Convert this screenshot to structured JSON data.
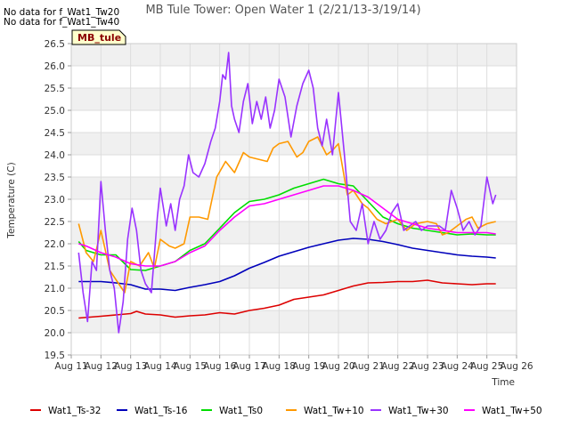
{
  "chart_data": {
    "type": "line",
    "title": "MB Tule Tower: Open Water 1 (2/21/13-3/19/14)",
    "xlabel": "Time",
    "ylabel": "Temperature (C)",
    "ylim": [
      19.5,
      26.5
    ],
    "yticks": [
      "19.5",
      "20.0",
      "20.5",
      "21.0",
      "21.5",
      "22.0",
      "22.5",
      "23.0",
      "23.5",
      "24.0",
      "24.5",
      "25.0",
      "25.5",
      "26.0",
      "26.5"
    ],
    "xlim": [
      11,
      26
    ],
    "xticks": [
      "Aug 11",
      "Aug 12",
      "Aug 13",
      "Aug 14",
      "Aug 15",
      "Aug 16",
      "Aug 17",
      "Aug 18",
      "Aug 19",
      "Aug 20",
      "Aug 21",
      "Aug 22",
      "Aug 23",
      "Aug 24",
      "Aug 25",
      "Aug 26"
    ],
    "notes": [
      "No data for f_Wat1_Tw20",
      "No data for f_Wat1_Tw40"
    ],
    "badge": "MB_tule",
    "series": [
      {
        "name": "Wat1_Ts-32",
        "color": "#dd0000",
        "x": [
          11.25,
          12,
          12.5,
          13,
          13.2,
          13.5,
          14,
          14.5,
          15,
          15.5,
          16,
          16.5,
          17,
          17.5,
          18,
          18.5,
          19,
          19.5,
          20,
          20.5,
          21,
          21.5,
          22,
          22.5,
          23,
          23.5,
          24,
          24.5,
          25,
          25.3
        ],
        "y": [
          20.33,
          20.37,
          20.4,
          20.43,
          20.48,
          20.42,
          20.4,
          20.35,
          20.38,
          20.4,
          20.45,
          20.42,
          20.5,
          20.55,
          20.62,
          20.75,
          20.8,
          20.85,
          20.95,
          21.05,
          21.12,
          21.13,
          21.15,
          21.15,
          21.18,
          21.12,
          21.1,
          21.08,
          21.1,
          21.1
        ]
      },
      {
        "name": "Wat1_Ts-16",
        "color": "#0000bb",
        "x": [
          11.25,
          12,
          12.5,
          13,
          13.5,
          14,
          14.5,
          15,
          15.5,
          16,
          16.5,
          17,
          17.5,
          18,
          18.5,
          19,
          19.5,
          20,
          20.5,
          21,
          21.5,
          22,
          22.5,
          23,
          23.5,
          24,
          24.5,
          25,
          25.3
        ],
        "y": [
          21.15,
          21.15,
          21.12,
          21.08,
          20.98,
          20.98,
          20.95,
          21.02,
          21.08,
          21.15,
          21.28,
          21.45,
          21.58,
          21.72,
          21.82,
          21.92,
          22.0,
          22.08,
          22.12,
          22.1,
          22.05,
          21.98,
          21.9,
          21.85,
          21.8,
          21.75,
          21.72,
          21.7,
          21.68
        ]
      },
      {
        "name": "Wat1_Ts0",
        "color": "#00dd00",
        "x": [
          11.25,
          11.5,
          12,
          12.5,
          13,
          13.5,
          14,
          14.5,
          15,
          15.5,
          16,
          16.5,
          17,
          17.5,
          18,
          18.5,
          19,
          19.5,
          20,
          20.5,
          21,
          21.5,
          22,
          22.5,
          23,
          23.5,
          24,
          24.5,
          25,
          25.3
        ],
        "y": [
          22.05,
          21.85,
          21.75,
          21.75,
          21.42,
          21.4,
          21.5,
          21.6,
          21.85,
          22.0,
          22.35,
          22.7,
          22.95,
          23.0,
          23.1,
          23.25,
          23.35,
          23.45,
          23.35,
          23.3,
          22.95,
          22.6,
          22.45,
          22.35,
          22.3,
          22.25,
          22.2,
          22.22,
          22.2,
          22.2
        ]
      },
      {
        "name": "Wat1_Tw+10",
        "color": "#ff9900",
        "x": [
          11.25,
          11.5,
          11.75,
          12,
          12.3,
          12.6,
          12.8,
          13,
          13.3,
          13.6,
          13.8,
          14,
          14.3,
          14.5,
          14.8,
          15,
          15.3,
          15.6,
          15.9,
          16.2,
          16.5,
          16.8,
          17,
          17.3,
          17.6,
          17.8,
          18,
          18.3,
          18.6,
          18.8,
          19,
          19.3,
          19.6,
          19.8,
          20,
          20.3,
          20.5,
          20.8,
          21,
          21.3,
          21.6,
          22,
          22.3,
          22.6,
          23,
          23.3,
          23.5,
          23.7,
          24,
          24.3,
          24.5,
          24.7,
          25,
          25.3
        ],
        "y": [
          22.45,
          21.8,
          21.6,
          22.3,
          21.4,
          21.1,
          20.9,
          21.6,
          21.5,
          21.8,
          21.45,
          22.1,
          21.95,
          21.9,
          22.0,
          22.6,
          22.6,
          22.55,
          23.5,
          23.85,
          23.6,
          24.05,
          23.95,
          23.9,
          23.85,
          24.15,
          24.25,
          24.3,
          23.95,
          24.05,
          24.3,
          24.4,
          24.0,
          24.1,
          24.25,
          23.1,
          23.2,
          22.9,
          22.8,
          22.55,
          22.45,
          22.55,
          22.3,
          22.45,
          22.5,
          22.45,
          22.2,
          22.25,
          22.4,
          22.55,
          22.6,
          22.35,
          22.45,
          22.5
        ]
      },
      {
        "name": "Wat1_Tw+30",
        "color": "#9933ff",
        "x": [
          11.25,
          11.4,
          11.55,
          11.7,
          11.85,
          12,
          12.15,
          12.3,
          12.45,
          12.6,
          12.75,
          12.9,
          13.05,
          13.2,
          13.35,
          13.5,
          13.7,
          13.9,
          14.0,
          14.2,
          14.35,
          14.5,
          14.65,
          14.8,
          14.95,
          15.1,
          15.3,
          15.5,
          15.7,
          15.85,
          16.0,
          16.1,
          16.2,
          16.3,
          16.4,
          16.5,
          16.65,
          16.8,
          16.95,
          17.1,
          17.25,
          17.4,
          17.55,
          17.7,
          17.85,
          18.0,
          18.2,
          18.4,
          18.6,
          18.8,
          19.0,
          19.15,
          19.3,
          19.45,
          19.6,
          19.8,
          20.0,
          20.2,
          20.4,
          20.6,
          20.8,
          21.0,
          21.2,
          21.4,
          21.6,
          21.8,
          22.0,
          22.2,
          22.4,
          22.6,
          22.8,
          23.0,
          23.2,
          23.4,
          23.6,
          23.8,
          24.0,
          24.2,
          24.4,
          24.6,
          24.8,
          25.0,
          25.2,
          25.3
        ],
        "y": [
          21.8,
          20.9,
          20.25,
          21.6,
          21.4,
          23.4,
          22.3,
          21.4,
          21.0,
          20.0,
          20.7,
          22.1,
          22.8,
          22.3,
          21.4,
          21.1,
          20.9,
          22.6,
          23.25,
          22.4,
          22.9,
          22.3,
          23.0,
          23.3,
          24.0,
          23.6,
          23.5,
          23.8,
          24.3,
          24.6,
          25.2,
          25.8,
          25.7,
          26.3,
          25.1,
          24.8,
          24.5,
          25.2,
          25.6,
          24.7,
          25.2,
          24.8,
          25.3,
          24.6,
          25.0,
          25.7,
          25.3,
          24.4,
          25.1,
          25.6,
          25.9,
          25.5,
          24.6,
          24.2,
          24.8,
          24.0,
          25.4,
          24.0,
          22.5,
          22.3,
          22.9,
          22.0,
          22.5,
          22.1,
          22.3,
          22.7,
          22.9,
          22.3,
          22.4,
          22.5,
          22.3,
          22.4,
          22.4,
          22.4,
          22.3,
          23.2,
          22.8,
          22.3,
          22.5,
          22.2,
          22.4,
          23.5,
          22.9,
          23.1
        ]
      },
      {
        "name": "Wat1_Tw+50",
        "color": "#ff00ff",
        "x": [
          11.25,
          11.5,
          12,
          12.5,
          13,
          13.5,
          14,
          14.5,
          15,
          15.5,
          16,
          16.5,
          17,
          17.5,
          18,
          18.5,
          19,
          19.5,
          20,
          20.5,
          21,
          21.5,
          22,
          22.5,
          23,
          23.5,
          24,
          24.5,
          25,
          25.3
        ],
        "y": [
          22.0,
          21.95,
          21.8,
          21.7,
          21.55,
          21.5,
          21.5,
          21.6,
          21.8,
          21.95,
          22.3,
          22.6,
          22.85,
          22.9,
          23.0,
          23.1,
          23.2,
          23.3,
          23.3,
          23.2,
          23.05,
          22.8,
          22.55,
          22.45,
          22.35,
          22.3,
          22.25,
          22.25,
          22.25,
          22.22
        ]
      }
    ]
  }
}
